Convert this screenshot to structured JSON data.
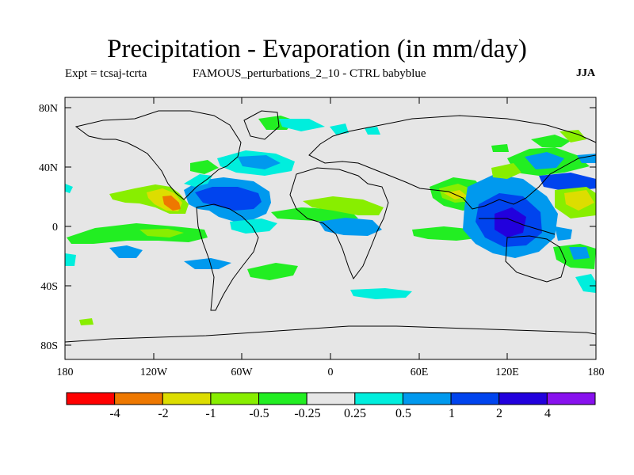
{
  "title": "Precipitation - Evaporation (in mm/day)",
  "experiment": "Expt = tcsaj-tcrta",
  "comparison": "FAMOUS_perturbations_2_10 - CTRL babyblue",
  "season": "JJA",
  "lat_ticks": [
    "80N",
    "40N",
    "0",
    "40S",
    "80S"
  ],
  "lon_ticks": [
    "180",
    "120W",
    "60W",
    "0",
    "60E",
    "120E",
    "180"
  ],
  "colorbar": {
    "colors": [
      "#ff0000",
      "#ee7800",
      "#dddd00",
      "#88ee00",
      "#22ee22",
      "#e6e6e6",
      "#00eedd",
      "#0099ee",
      "#0044ee",
      "#2200dd",
      "#8811ee"
    ],
    "labels": [
      "-4",
      "-2",
      "-1",
      "-0.5",
      "-0.25",
      "0.25",
      "0.5",
      "1",
      "2",
      "4"
    ]
  },
  "colors": {
    "land_bg": "#e6e6e6"
  }
}
